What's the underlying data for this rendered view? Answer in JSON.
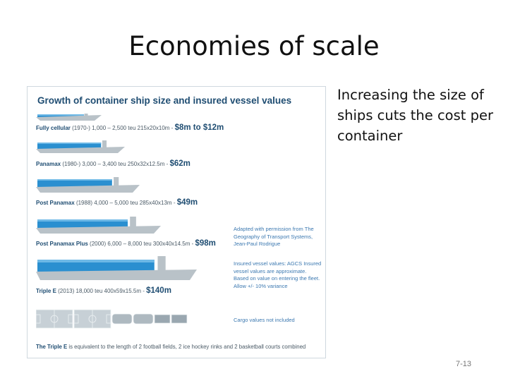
{
  "slide": {
    "title": "Economies of scale",
    "bullet": "Increasing the size of ships cuts the cost per container",
    "page_number": "7-13"
  },
  "figure": {
    "title": "Growth of container ship size and insured vessel values",
    "ships": [
      {
        "name": "Fully cellular",
        "details": "(1970-) 1,000 – 2,500 teu 215x20x10m -",
        "value": "$8m to $12m",
        "length_ratio": 0.33
      },
      {
        "name": "Panamax",
        "details": "(1980-) 3,000 – 3,400 teu 250x32x12.5m -",
        "value": "$62m",
        "length_ratio": 0.45
      },
      {
        "name": "Post Panamax",
        "details": "(1988) 4,000 – 5,000 teu 285x40x13m -",
        "value": "$49m",
        "length_ratio": 0.53
      },
      {
        "name": "Post Panamax Plus",
        "details": "(2000) 6,000 – 8,000 teu 300x40x14.5m -",
        "value": "$98m",
        "length_ratio": 0.64
      },
      {
        "name": "Triple E",
        "details": "(2013) 18,000 teu 400x59x15.5m -",
        "value": "$140m",
        "length_ratio": 0.83
      }
    ],
    "credit": "Adapted with permission from The Geography of Transport Systems, Jean-Paul Rodrigue",
    "insured_note": "Insured vessel values: AGCS Insured vessel values are approximate. Based on value on entering the fleet. Allow +/- 10% variance",
    "cargo_note": "Cargo values not included",
    "footer_name": "The Triple E",
    "footer_text": "is equivalent to the length of 2 football fields, 2 ice hockey rinks and 2 basketball courts combined",
    "colors": {
      "ship": "#2a8fd0",
      "deck": "#6db8e6",
      "hull_grey": "#b9c2c8",
      "title": "#1f4d72",
      "note": "#3b78b0"
    }
  }
}
